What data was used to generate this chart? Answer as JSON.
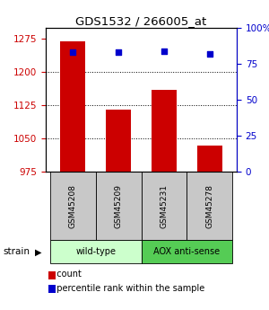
{
  "title": "GDS1532 / 266005_at",
  "samples": [
    "GSM45208",
    "GSM45209",
    "GSM45231",
    "GSM45278"
  ],
  "counts": [
    1270,
    1115,
    1160,
    1035
  ],
  "percentiles": [
    83,
    83,
    84,
    82
  ],
  "ylim_left": [
    975,
    1300
  ],
  "ylim_right": [
    0,
    100
  ],
  "yticks_left": [
    975,
    1050,
    1125,
    1200,
    1275
  ],
  "yticks_right": [
    0,
    25,
    50,
    75,
    100
  ],
  "bar_color": "#cc0000",
  "dot_color": "#0000cc",
  "grid_color": "#000000",
  "label_color_left": "#cc0000",
  "label_color_right": "#0000cc",
  "groups": [
    {
      "name": "wild-type",
      "indices": [
        0,
        1
      ],
      "color": "#ccffcc"
    },
    {
      "name": "AOX anti-sense",
      "indices": [
        2,
        3
      ],
      "color": "#55cc55"
    }
  ],
  "strain_label": "strain",
  "legend_count": "count",
  "legend_pct": "percentile rank within the sample",
  "bar_width": 0.55,
  "background_color": "#ffffff"
}
